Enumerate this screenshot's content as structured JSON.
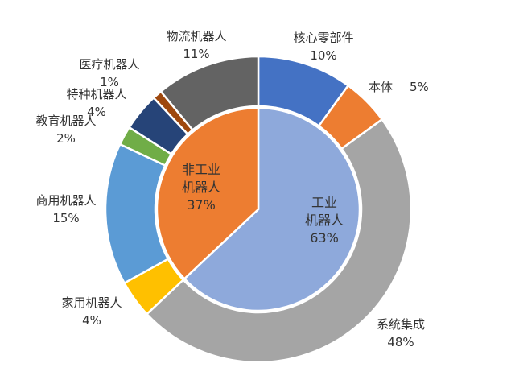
{
  "chart_data": {
    "type": "pie",
    "title": "",
    "inner_ring": {
      "slices": [
        {
          "name": "工业\n机器人",
          "value": 63,
          "value_label": "63%",
          "color": "#8EA9DB"
        },
        {
          "name": "非工业\n机器人",
          "value": 37,
          "value_label": "37%",
          "color": "#ED7D31"
        }
      ]
    },
    "outer_ring": {
      "slices": [
        {
          "name": "核心零部件",
          "value": 10,
          "value_label": "10%",
          "color": "#4472C4"
        },
        {
          "name": "本体",
          "value": 5,
          "value_label": "5%",
          "color": "#ED7D31"
        },
        {
          "name": "系统集成",
          "value": 48,
          "value_label": "48%",
          "color": "#A5A5A5"
        },
        {
          "name": "家用机器人",
          "value": 4,
          "value_label": "4%",
          "color": "#FFC000"
        },
        {
          "name": "商用机器人",
          "value": 15,
          "value_label": "15%",
          "color": "#5B9BD5"
        },
        {
          "name": "教育机器人",
          "value": 2,
          "value_label": "2%",
          "color": "#70AD47"
        },
        {
          "name": "特种机器人",
          "value": 4,
          "value_label": "4%",
          "color": "#264478"
        },
        {
          "name": "医疗机器人",
          "value": 1,
          "value_label": "1%",
          "color": "#9E480E"
        },
        {
          "name": "物流机器人",
          "value": 11,
          "value_label": "11%",
          "color": "#636363"
        }
      ]
    }
  }
}
